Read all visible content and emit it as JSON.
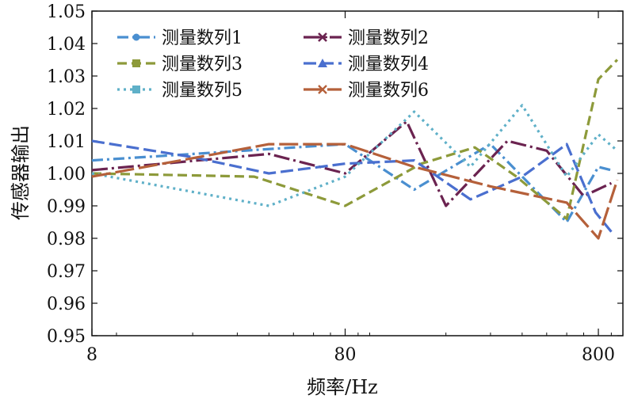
{
  "chart_data": {
    "type": "line",
    "xscale": "log",
    "xlim": [
      8,
      1000
    ],
    "ylim": [
      0.95,
      1.05
    ],
    "xticks": [
      "8",
      "80",
      "800"
    ],
    "yticks": [
      "0.95",
      "0.96",
      "0.97",
      "0.98",
      "0.99",
      "1.00",
      "1.01",
      "1.02",
      "1.03",
      "1.04",
      "1.05"
    ],
    "xlabel": "频率/Hz",
    "ylabel": "传感器输出",
    "legend_position": "top-left, two columns",
    "series": [
      {
        "name": "测量数列1",
        "color": "#4a8fd0",
        "dash": "14 5 3 5",
        "marker": "circle",
        "x": [
          8,
          80,
          150,
          300,
          600,
          800,
          900
        ],
        "y": [
          1.004,
          1.009,
          0.995,
          1.009,
          0.985,
          1.002,
          1.001
        ]
      },
      {
        "name": "测量数列2",
        "color": "#6b2350",
        "dash": "20 5 3 5",
        "marker": "star",
        "x": [
          8,
          40,
          80,
          140,
          200,
          350,
          500,
          700,
          900
        ],
        "y": [
          1.001,
          1.006,
          1.0,
          1.016,
          0.99,
          1.01,
          1.007,
          0.993,
          0.997
        ]
      },
      {
        "name": "测量数列3",
        "color": "#8d9a3a",
        "dash": "12 6",
        "marker": "square",
        "x": [
          8,
          35,
          80,
          160,
          260,
          380,
          600,
          800,
          950
        ],
        "y": [
          1.0,
          0.999,
          0.99,
          1.003,
          1.008,
          0.999,
          0.986,
          1.029,
          1.035
        ]
      },
      {
        "name": "测量数列4",
        "color": "#4a6fcf",
        "dash": "16 6",
        "marker": "triangle",
        "x": [
          8,
          20,
          40,
          80,
          150,
          250,
          400,
          600,
          780,
          900
        ],
        "y": [
          1.01,
          1.005,
          1.0,
          1.003,
          1.004,
          0.992,
          0.999,
          1.009,
          0.988,
          0.982
        ]
      },
      {
        "name": "测量数列5",
        "color": "#5fb0c8",
        "dash": "3 5",
        "marker": "square",
        "x": [
          8,
          40,
          80,
          150,
          250,
          400,
          600,
          800,
          950
        ],
        "y": [
          1.0,
          0.99,
          0.999,
          1.019,
          1.002,
          1.021,
          0.999,
          1.012,
          1.007
        ]
      },
      {
        "name": "测量数列6",
        "color": "#b5603a",
        "dash": "24 6",
        "marker": "x",
        "x": [
          8,
          40,
          80,
          150,
          300,
          600,
          800,
          950
        ],
        "y": [
          0.999,
          1.009,
          1.009,
          1.002,
          0.996,
          0.991,
          0.98,
          0.998
        ]
      }
    ]
  }
}
